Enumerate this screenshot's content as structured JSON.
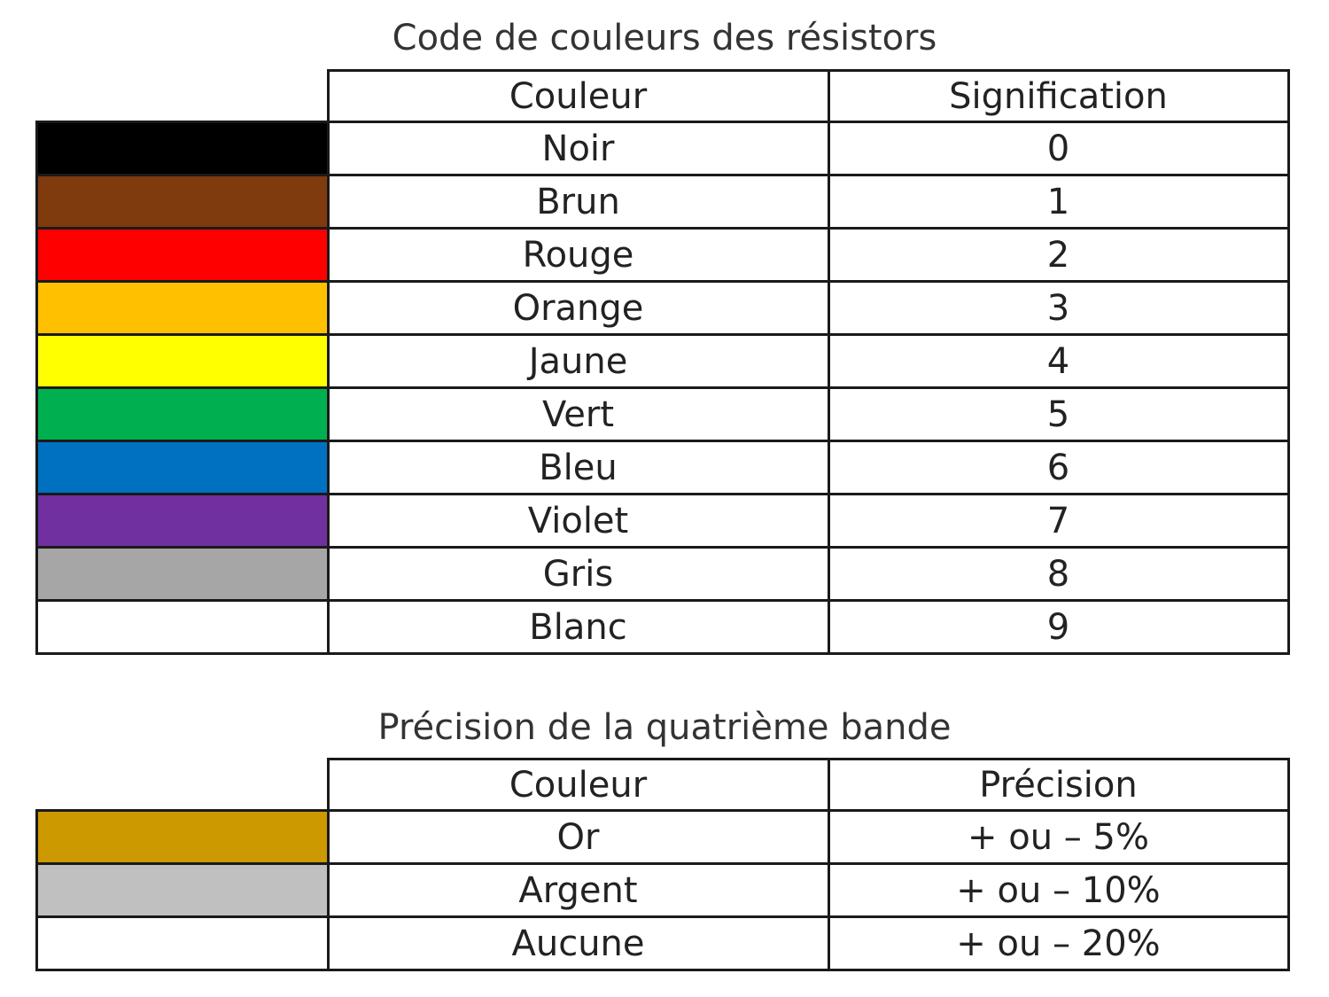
{
  "table1": {
    "title": "Code de couleurs des résistors",
    "headers": [
      "Couleur",
      "Signification"
    ],
    "rows": [
      {
        "color": "Noir",
        "value": "0",
        "swatch": "#000000"
      },
      {
        "color": "Brun",
        "value": "1",
        "swatch": "#7f3a0e"
      },
      {
        "color": "Rouge",
        "value": "2",
        "swatch": "#ff0000"
      },
      {
        "color": "Orange",
        "value": "3",
        "swatch": "#ffc000"
      },
      {
        "color": "Jaune",
        "value": "4",
        "swatch": "#ffff00"
      },
      {
        "color": "Vert",
        "value": "5",
        "swatch": "#00b050"
      },
      {
        "color": "Bleu",
        "value": "6",
        "swatch": "#0070c0"
      },
      {
        "color": "Violet",
        "value": "7",
        "swatch": "#7030a0"
      },
      {
        "color": "Gris",
        "value": "8",
        "swatch": "#a6a6a6"
      },
      {
        "color": "Blanc",
        "value": "9",
        "swatch": "#ffffff"
      }
    ]
  },
  "table2": {
    "title": "Précision de la quatrième bande",
    "headers": [
      "Couleur",
      "Précision"
    ],
    "rows": [
      {
        "color": "Or",
        "value": "+ ou – 5%",
        "swatch": "#cc9900"
      },
      {
        "color": "Argent",
        "value": "+ ou – 10%",
        "swatch": "#c0c0c0"
      },
      {
        "color": "Aucune",
        "value": "+ ou – 20%",
        "swatch": "#ffffff"
      }
    ]
  }
}
